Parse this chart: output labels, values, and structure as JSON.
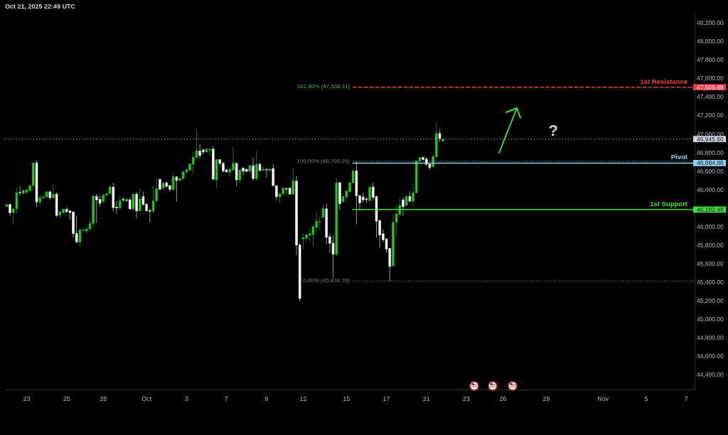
{
  "chart_data": {
    "type": "candlestick",
    "title": "Oct 21, 2025 22:49 UTC",
    "categories": [
      null,
      null,
      null,
      null,
      null,
      null,
      "23",
      null,
      null,
      null,
      null,
      null,
      null,
      null,
      null,
      null,
      null,
      null,
      "25",
      null,
      null,
      null,
      null,
      null,
      null,
      null,
      null,
      null,
      null,
      "28",
      null,
      null,
      null,
      null,
      null,
      null,
      null,
      null,
      null,
      null,
      null,
      null,
      "Oct",
      null,
      null,
      null,
      null,
      null,
      null,
      null,
      null,
      null,
      null,
      null,
      "3",
      null,
      null,
      null,
      null,
      null,
      null,
      null,
      null,
      null,
      null,
      null,
      "7",
      null,
      null,
      null,
      null,
      null,
      null,
      null,
      null,
      null,
      null,
      null,
      "9",
      null,
      null,
      null,
      null,
      null,
      null,
      null,
      null,
      null,
      null,
      "12",
      null,
      null,
      null,
      null,
      null,
      null,
      null,
      null,
      null,
      null,
      null,
      null,
      "15",
      null,
      null,
      null,
      null,
      null,
      null,
      null,
      null,
      null,
      null,
      null,
      "17",
      null,
      null,
      null,
      null,
      null,
      null,
      null,
      null,
      null,
      null,
      null,
      "21",
      null,
      null,
      null,
      null,
      null,
      null,
      null,
      null,
      null,
      null,
      null,
      "23",
      null,
      null,
      null,
      null,
      null,
      null,
      null,
      null,
      null,
      null,
      "26",
      null,
      null,
      null,
      null,
      null,
      null,
      null,
      null,
      null,
      null,
      null,
      null,
      "29",
      null,
      null,
      null,
      null,
      null,
      null,
      null,
      null,
      null,
      null,
      null,
      null,
      null,
      null,
      null,
      null,
      "Nov",
      null,
      null,
      null,
      null,
      null,
      null,
      null,
      null,
      null,
      null,
      null,
      null,
      "5",
      null,
      null,
      null,
      null,
      null,
      null,
      null,
      null,
      null,
      null,
      null,
      "7",
      null,
      null
    ],
    "ohlc": [
      [
        46215,
        46254,
        46210,
        46236
      ],
      [
        46236,
        46254,
        46113,
        46149
      ],
      [
        46149,
        46190,
        46018,
        46190
      ],
      [
        46190,
        46421,
        46144,
        46364
      ],
      [
        46369,
        46439,
        46336,
        46364
      ],
      [
        46356,
        46395,
        46349,
        46390
      ],
      [
        46369,
        46415,
        46356,
        46395
      ],
      [
        46387,
        46459,
        46369,
        46441
      ],
      [
        46441,
        46687,
        46395,
        46687
      ],
      [
        46687,
        46715,
        46210,
        46264
      ],
      [
        46264,
        46339,
        46221,
        46310
      ],
      [
        46310,
        46344,
        46292,
        46318
      ],
      [
        46318,
        46380,
        46313,
        46374
      ],
      [
        46374,
        46390,
        46287,
        46310
      ],
      [
        46310,
        46454,
        46292,
        46349
      ],
      [
        46349,
        46369,
        46100,
        46118
      ],
      [
        46123,
        46169,
        46087,
        46156
      ],
      [
        46149,
        46190,
        46144,
        46185
      ],
      [
        46185,
        46208,
        46151,
        46159
      ],
      [
        46169,
        46172,
        46067,
        46149
      ],
      [
        46156,
        46164,
        45877,
        45923
      ],
      [
        45923,
        46113,
        45826,
        45831
      ],
      [
        45831,
        45980,
        45780,
        45959
      ],
      [
        45954,
        45990,
        45933,
        45959
      ],
      [
        45951,
        45990,
        45921,
        45972
      ],
      [
        45972,
        46082,
        45959,
        46031
      ],
      [
        46031,
        46333,
        45990,
        46328
      ],
      [
        46323,
        46354,
        46036,
        46287
      ],
      [
        46292,
        46331,
        46215,
        46251
      ],
      [
        46267,
        46344,
        46254,
        46339
      ],
      [
        46336,
        46356,
        46331,
        46354
      ],
      [
        46354,
        46446,
        46344,
        46426
      ],
      [
        46426,
        46472,
        46164,
        46203
      ],
      [
        46210,
        46280,
        46133,
        46200
      ],
      [
        46200,
        46331,
        46177,
        46277
      ],
      [
        46292,
        46323,
        46267,
        46285
      ],
      [
        46272,
        46318,
        46267,
        46292
      ],
      [
        46287,
        46313,
        46177,
        46190
      ],
      [
        46190,
        46356,
        46164,
        46349
      ],
      [
        46349,
        46369,
        46087,
        46169
      ],
      [
        46169,
        46415,
        46164,
        46297
      ],
      [
        46323,
        46374,
        46228,
        46236
      ],
      [
        46241,
        46246,
        46164,
        46169
      ],
      [
        46172,
        46195,
        46041,
        46164
      ],
      [
        46164,
        46439,
        46149,
        46275
      ],
      [
        46275,
        46523,
        46267,
        46408
      ],
      [
        46510,
        46515,
        46390,
        46403
      ],
      [
        46415,
        46485,
        46395,
        46467
      ],
      [
        46472,
        46485,
        46421,
        46433
      ],
      [
        46441,
        46451,
        46374,
        46400
      ],
      [
        46400,
        46569,
        46390,
        46536
      ],
      [
        46536,
        46541,
        46267,
        46497
      ],
      [
        46497,
        46523,
        46490,
        46518
      ],
      [
        46518,
        46597,
        46505,
        46592
      ],
      [
        46587,
        46626,
        46569,
        46613
      ],
      [
        46608,
        46682,
        46595,
        46677
      ],
      [
        46672,
        46810,
        46562,
        46746
      ],
      [
        46746,
        47049,
        46728,
        46821
      ],
      [
        46815,
        46890,
        46736,
        46767
      ],
      [
        46826,
        46844,
        46780,
        46805
      ],
      [
        46805,
        46841,
        46800,
        46836
      ],
      [
        46826,
        46841,
        46767,
        46836
      ],
      [
        46836,
        46869,
        46505,
        46510
      ],
      [
        46503,
        46728,
        46413,
        46723
      ],
      [
        46723,
        46728,
        46651,
        46682
      ],
      [
        46682,
        46703,
        46580,
        46600
      ],
      [
        46613,
        46618,
        46582,
        46590
      ],
      [
        46587,
        46639,
        46536,
        46618
      ],
      [
        46610,
        46862,
        46600,
        46682
      ],
      [
        46682,
        46690,
        46433,
        46503
      ],
      [
        46503,
        46626,
        46467,
        46610
      ],
      [
        46631,
        46639,
        46554,
        46597
      ],
      [
        46618,
        46626,
        46590,
        46595
      ],
      [
        46595,
        46677,
        46587,
        46656
      ],
      [
        46656,
        46746,
        46497,
        46518
      ],
      [
        46518,
        46823,
        46497,
        46669
      ],
      [
        46672,
        46690,
        46595,
        46605
      ],
      [
        46610,
        46656,
        46587,
        46618
      ],
      [
        46618,
        46626,
        46531,
        46613
      ],
      [
        46605,
        46626,
        46595,
        46620
      ],
      [
        46626,
        46677,
        46436,
        46441
      ],
      [
        46441,
        46446,
        46280,
        46323
      ],
      [
        46318,
        46369,
        46251,
        46351
      ],
      [
        46351,
        46420,
        46344,
        46415
      ],
      [
        46408,
        46421,
        46356,
        46403
      ],
      [
        46415,
        46421,
        46344,
        46349
      ],
      [
        46349,
        46633,
        46344,
        46492
      ],
      [
        46490,
        46544,
        45690,
        45798
      ],
      [
        45800,
        45818,
        45190,
        45221
      ],
      [
        45864,
        45921,
        45754,
        45877
      ],
      [
        45872,
        45918,
        45844,
        45908
      ],
      [
        45905,
        45985,
        45831,
        45921
      ],
      [
        45913,
        46010,
        45780,
        45997
      ],
      [
        45990,
        46151,
        45933,
        46056
      ],
      [
        46046,
        46113,
        45959,
        46049
      ],
      [
        46100,
        46241,
        46087,
        46190
      ],
      [
        46190,
        46246,
        45805,
        45882
      ],
      [
        45887,
        45920,
        45716,
        45818
      ],
      [
        45818,
        45903,
        45446,
        45698
      ],
      [
        45698,
        46523,
        45677,
        46472
      ],
      [
        46472,
        46485,
        46177,
        46246
      ],
      [
        46267,
        46331,
        46262,
        46323
      ],
      [
        46318,
        46400,
        46305,
        46382
      ],
      [
        46374,
        46485,
        46369,
        46472
      ],
      [
        46472,
        46631,
        46467,
        46600
      ],
      [
        46600,
        46706,
        46023,
        46331
      ],
      [
        46331,
        46344,
        46169,
        46254
      ],
      [
        46318,
        46369,
        46254,
        46287
      ],
      [
        46298,
        46318,
        46246,
        46290
      ],
      [
        46280,
        46433,
        46272,
        46426
      ],
      [
        46426,
        46472,
        46280,
        46313
      ],
      [
        46323,
        46331,
        45882,
        46056
      ],
      [
        46062,
        46074,
        45767,
        45908
      ],
      [
        45920,
        45964,
        45831,
        45856
      ],
      [
        45862,
        45877,
        45716,
        45754
      ],
      [
        45762,
        45767,
        45409,
        45567
      ],
      [
        45574,
        46126,
        45567,
        46044
      ],
      [
        46044,
        46215,
        45895,
        46133
      ],
      [
        46128,
        46305,
        46113,
        46228
      ],
      [
        46287,
        46318,
        46113,
        46215
      ],
      [
        46228,
        46344,
        46215,
        46323
      ],
      [
        46323,
        46382,
        46262,
        46272
      ],
      [
        46272,
        46477,
        46215,
        46364
      ],
      [
        46364,
        46712,
        46356,
        46708
      ],
      [
        46708,
        46754,
        46695,
        46746
      ],
      [
        46746,
        46754,
        46718,
        46723
      ],
      [
        46728,
        46754,
        46656,
        46672
      ],
      [
        46672,
        46690,
        46613,
        46639
      ],
      [
        46646,
        46780,
        46638,
        46754
      ],
      [
        46754,
        47126,
        46741,
        47005
      ],
      [
        47005,
        47041,
        46913,
        46954
      ],
      [
        46925,
        46950,
        46913,
        46945.6
      ],
      null,
      null,
      null,
      null,
      null,
      null,
      null,
      null,
      null,
      null,
      null,
      null,
      null,
      null,
      null,
      null,
      null,
      null,
      null,
      null,
      null,
      null,
      null,
      null,
      null,
      null,
      null,
      null,
      null,
      null,
      null,
      null,
      null,
      null,
      null,
      null,
      null,
      null,
      null,
      null,
      null,
      null,
      null,
      null,
      null,
      null,
      null,
      null,
      null,
      null,
      null,
      null,
      null,
      null,
      null,
      null,
      null,
      null,
      null,
      null,
      null,
      null,
      null,
      null,
      null,
      null,
      null,
      null,
      null,
      null,
      null,
      null,
      null,
      null,
      null
    ],
    "colors": [
      "#29c329",
      "#ffffff",
      "#29c329",
      "#29c329",
      "#ffffff",
      "#29c329",
      "#29c329",
      "#29c329",
      "#29c329",
      "#ffffff",
      "#29c329",
      "#29c329",
      "#29c329",
      "#ffffff",
      "#29c329",
      "#ffffff",
      "#29c329",
      "#29c329",
      "#ffffff",
      "#ffffff",
      "#ffffff",
      "#ffffff",
      "#29c329",
      "#29c329",
      "#29c329",
      "#29c329",
      "#29c329",
      "#ffffff",
      "#ffffff",
      "#29c329",
      "#29c329",
      "#29c329",
      "#ffffff",
      "#ffffff",
      "#29c329",
      "#ffffff",
      "#29c329",
      "#ffffff",
      "#29c329",
      "#ffffff",
      "#29c329",
      "#ffffff",
      "#ffffff",
      "#ffffff",
      "#29c329",
      "#29c329",
      "#ffffff",
      "#29c329",
      "#ffffff",
      "#ffffff",
      "#29c329",
      "#ffffff",
      "#29c329",
      "#29c329",
      "#29c329",
      "#29c329",
      "#29c329",
      "#29c329",
      "#ffffff",
      "#ffffff",
      "#29c329",
      "#29c329",
      "#ffffff",
      "#29c329",
      "#ffffff",
      "#ffffff",
      "#ffffff",
      "#29c329",
      "#29c329",
      "#ffffff",
      "#29c329",
      "#ffffff",
      "#ffffff",
      "#29c329",
      "#ffffff",
      "#29c329",
      "#ffffff",
      "#29c329",
      "#ffffff",
      "#29c329",
      "#ffffff",
      "#ffffff",
      "#29c329",
      "#29c329",
      "#ffffff",
      "#ffffff",
      "#29c329",
      "#ffffff",
      "#ffffff",
      "#29c329",
      "#29c329",
      "#29c329",
      "#29c329",
      "#29c329",
      "#29c329",
      "#29c329",
      "#ffffff",
      "#ffffff",
      "#ffffff",
      "#29c329",
      "#ffffff",
      "#29c329",
      "#29c329",
      "#29c329",
      "#29c329",
      "#ffffff",
      "#ffffff",
      "#ffffff",
      "#ffffff",
      "#29c329",
      "#ffffff",
      "#ffffff",
      "#ffffff",
      "#ffffff",
      "#ffffff",
      "#ffffff",
      "#29c329",
      "#29c329",
      "#29c329",
      "#ffffff",
      "#29c329",
      "#ffffff",
      "#29c329",
      "#29c329",
      "#29c329",
      "#ffffff",
      "#ffffff",
      "#ffffff",
      "#29c329",
      "#29c329",
      "#ffffff",
      "#29c329",
      null,
      null,
      null,
      null,
      null,
      null,
      null,
      null,
      null,
      null,
      null,
      null,
      null,
      null,
      null,
      null,
      null,
      null,
      null,
      null,
      null,
      null,
      null,
      null,
      null,
      null,
      null,
      null,
      null,
      null,
      null,
      null,
      null,
      null,
      null,
      null,
      null,
      null,
      null,
      null,
      null,
      null,
      null,
      null,
      null,
      null,
      null,
      null,
      null,
      null,
      null,
      null,
      null,
      null,
      null,
      null,
      null,
      null,
      null,
      null,
      null,
      null,
      null,
      null,
      null,
      null,
      null,
      null,
      null,
      null,
      null,
      null,
      null,
      null,
      null
    ],
    "ylim": [
      44235,
      48296
    ],
    "yticks": [
      {
        "value": 44400,
        "label": "44,400.00"
      },
      {
        "value": 44600,
        "label": "44,600.00"
      },
      {
        "value": 44800,
        "label": "44,800.00"
      },
      {
        "value": 45000,
        "label": "45,000.00"
      },
      {
        "value": 45200,
        "label": "45,200.00"
      },
      {
        "value": 45400,
        "label": "45,400.00"
      },
      {
        "value": 45600,
        "label": "45,600.00"
      },
      {
        "value": 45800,
        "label": "45,800.00"
      },
      {
        "value": 46000,
        "label": "46,000.00"
      },
      {
        "value": 46182.48,
        "label": "46,182.48"
      },
      {
        "value": 46400,
        "label": "46,400.00"
      },
      {
        "value": 46600,
        "label": "46,600.00"
      },
      {
        "value": 46684.86,
        "label": "46,684.86"
      },
      {
        "value": 46800,
        "label": "46,800.00"
      },
      {
        "value": 46945.6,
        "label": "46,945.60"
      },
      {
        "value": 47000,
        "label": "47,000.00"
      },
      {
        "value": 47200,
        "label": "47,200.00"
      },
      {
        "value": 47400,
        "label": "47,400.00"
      },
      {
        "value": 47505.88,
        "label": "47,505.88"
      },
      {
        "value": 47600,
        "label": "47,600.00"
      },
      {
        "value": 47800,
        "label": "47,800.00"
      },
      {
        "value": 48000,
        "label": "48,000.00"
      },
      {
        "value": 48200,
        "label": "48,200.00"
      }
    ],
    "ref_lines": [
      {
        "axis": "y",
        "value": 46945.6,
        "label": null,
        "color": "#d1d4dc",
        "line_style": "dotted"
      },
      {
        "axis": "y",
        "value": 47508.11,
        "label": "161.80% (47,508.11)",
        "color": "#4caf50",
        "line_style": "dotted"
      },
      {
        "axis": "y",
        "value": 46706.26,
        "label": "100.00% (46,706.26)",
        "color": "#787b86",
        "line_style": "dotted"
      },
      {
        "axis": "y",
        "value": 45408.76,
        "label": "0.00% (45,408.76)",
        "color": "#787b86",
        "line_style": "dotted"
      },
      {
        "axis": "y",
        "value": 47505.88,
        "label": "1st Resistance",
        "color": "#f23645",
        "line_style": "dashed"
      },
      {
        "axis": "y",
        "value": 46684.86,
        "label": "Pivot",
        "color": "#8fd3ef",
        "line_style": "solid"
      },
      {
        "axis": "y",
        "value": 46182.48,
        "label": "1st Support",
        "color": "#3ee03e",
        "line_style": "solid"
      }
    ],
    "annotations": [
      "?"
    ]
  }
}
